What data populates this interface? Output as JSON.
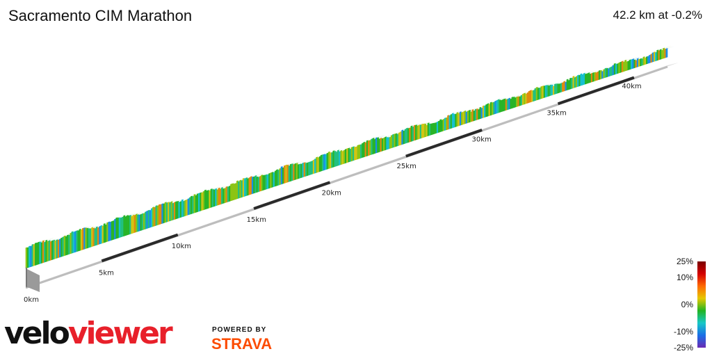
{
  "header": {
    "title": "Sacramento CIM Marathon",
    "summary": "42.2 km at -0.2%"
  },
  "chart_data": {
    "type": "area",
    "title": "Sacramento CIM Marathon",
    "distance_km": 42.2,
    "average_grade_pct": -0.2,
    "x_ticks": [
      "0km",
      "5km",
      "10km",
      "15km",
      "20km",
      "25km",
      "30km",
      "35km",
      "40km"
    ],
    "x_tick_values": [
      0,
      5,
      10,
      15,
      20,
      25,
      30,
      35,
      40
    ],
    "grade_scale": {
      "labels": [
        "25%",
        "10%",
        "0%",
        "-10%",
        "-25%"
      ],
      "values": [
        25,
        10,
        0,
        -10,
        -25
      ],
      "colors": [
        "#7a0000",
        "#d40000",
        "#ff6a00",
        "#e6c800",
        "#22b422",
        "#18c8c8",
        "#1a6ee6",
        "#6a2ab4"
      ]
    },
    "segment_colors": {
      "down_steep": "#1a8ee6",
      "down": "#16c0d0",
      "flat_down": "#22c080",
      "flat": "#28b428",
      "up": "#8cc414",
      "up_more": "#d2c414",
      "up_steep": "#e08a10"
    }
  },
  "branding": {
    "logo_part1": "velo",
    "logo_part2": "viewer",
    "powered_by": "POWERED BY",
    "strava": "STRAVA",
    "colors": {
      "velo": "#111111",
      "viewer": "#e8202a",
      "strava": "#fc4c02"
    }
  }
}
